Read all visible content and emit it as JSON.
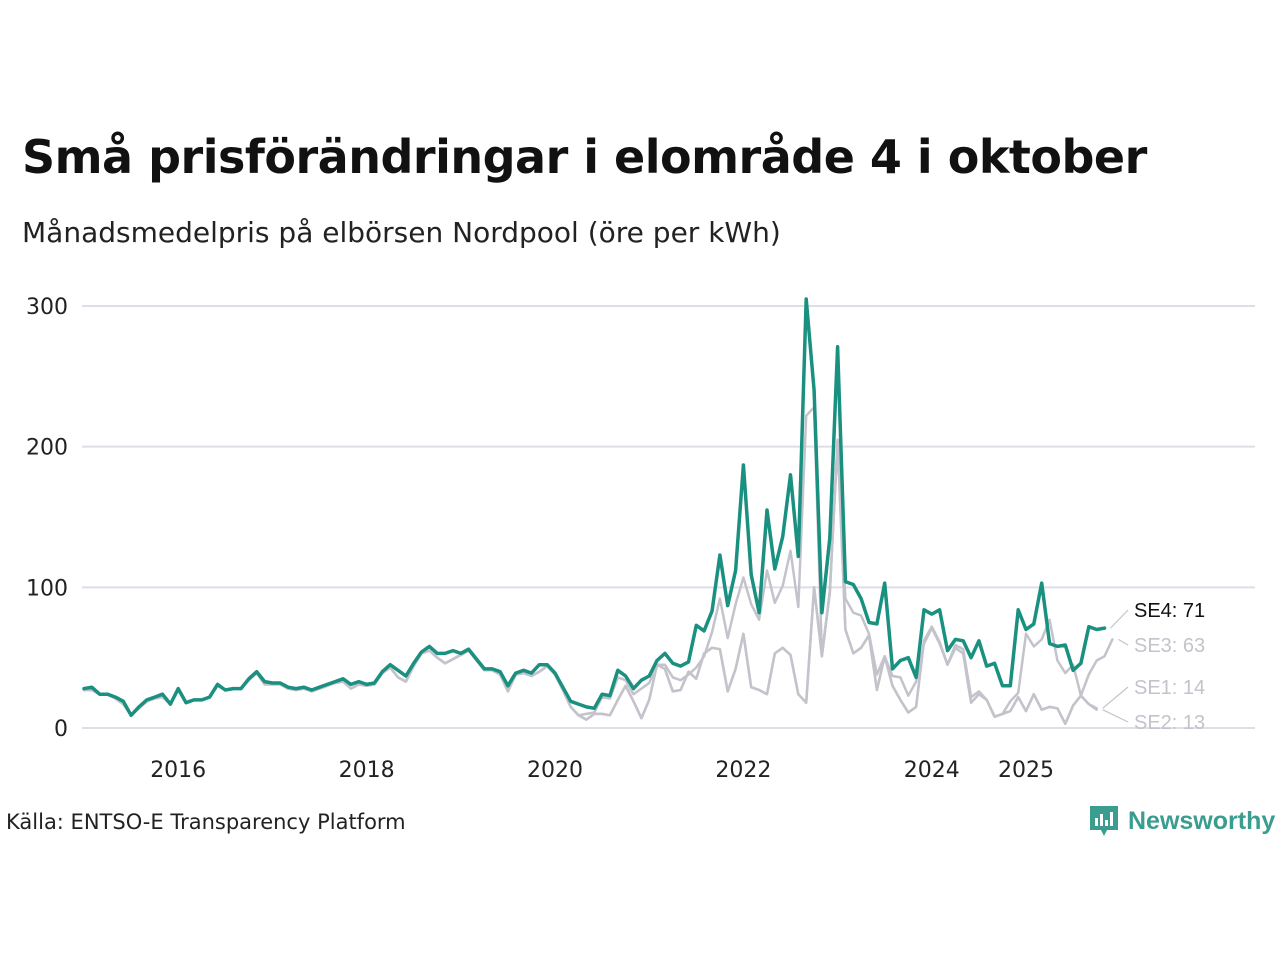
{
  "title": "Små prisförändringar i elområde 4 i oktober",
  "subtitle": "Månadsmedelpris på elbörsen Nordpool (öre per kWh)",
  "source": "Källa: ENTSO-E Transparency Platform",
  "brand": "Newsworthy",
  "colors": {
    "se4": "#1a9080",
    "others": "#c4c3cc",
    "grid": "#dedee6",
    "brand": "#3a9d8f",
    "label_se4": "#111111",
    "label_other": "#c4c3cc"
  },
  "icons": {
    "logo": "newsworthy-logo-icon"
  },
  "chart_data": {
    "type": "line",
    "title": "Små prisförändringar i elområde 4 i oktober",
    "ylabel": "öre per kWh",
    "xlabel": "",
    "ylim": [
      0,
      300
    ],
    "yticks": [
      "0",
      "100",
      "200",
      "300"
    ],
    "xticks": [
      {
        "label": "2016",
        "x": 2016
      },
      {
        "label": "2018",
        "x": 2018
      },
      {
        "label": "2020",
        "x": 2020
      },
      {
        "label": "2022",
        "x": 2022
      },
      {
        "label": "2024",
        "x": 2024
      },
      {
        "label": "2025",
        "x": 2025
      }
    ],
    "xstart": 2015.0,
    "step_months": 1,
    "series": [
      {
        "name": "SE4",
        "label": "SE4: 71",
        "last": 71,
        "values": [
          28,
          29,
          24,
          24,
          22,
          19,
          9,
          15,
          20,
          22,
          24,
          17,
          28,
          18,
          20,
          20,
          22,
          31,
          27,
          28,
          28,
          35,
          40,
          33,
          32,
          32,
          29,
          28,
          29,
          27,
          29,
          31,
          33,
          35,
          31,
          33,
          31,
          32,
          40,
          45,
          41,
          37,
          46,
          54,
          58,
          53,
          53,
          55,
          53,
          56,
          49,
          42,
          42,
          40,
          30,
          39,
          41,
          39,
          45,
          45,
          39,
          29,
          19,
          17,
          15,
          14,
          24,
          23,
          41,
          37,
          28,
          34,
          37,
          48,
          53,
          46,
          44,
          47,
          73,
          69,
          83,
          123,
          87,
          112,
          187,
          109,
          82,
          155,
          113,
          136,
          180,
          122,
          305,
          240,
          82,
          135,
          271,
          104,
          102,
          92,
          75,
          74,
          103,
          42,
          48,
          50,
          36,
          84,
          81,
          84,
          55,
          63,
          62,
          50,
          62,
          44,
          46,
          30,
          30,
          84,
          70,
          74,
          103,
          60,
          58,
          59,
          41,
          46,
          72,
          70,
          71
        ]
      },
      {
        "name": "SE3",
        "label": "SE3: 63",
        "values": [
          27,
          27,
          24,
          24,
          21,
          17,
          9,
          14,
          19,
          21,
          23,
          17,
          27,
          18,
          20,
          20,
          22,
          30,
          27,
          28,
          28,
          34,
          39,
          31,
          31,
          31,
          28,
          27,
          28,
          26,
          28,
          30,
          32,
          33,
          28,
          31,
          30,
          31,
          39,
          43,
          36,
          33,
          44,
          53,
          55,
          50,
          46,
          49,
          52,
          55,
          48,
          41,
          41,
          38,
          26,
          38,
          39,
          37,
          40,
          44,
          38,
          27,
          15,
          9,
          10,
          11,
          22,
          21,
          36,
          34,
          24,
          28,
          32,
          45,
          45,
          36,
          34,
          38,
          43,
          51,
          68,
          92,
          64,
          88,
          107,
          88,
          77,
          112,
          89,
          101,
          126,
          86,
          222,
          228,
          52,
          96,
          205,
          92,
          82,
          80,
          67,
          38,
          51,
          37,
          36,
          23,
          33,
          60,
          71,
          60,
          45,
          59,
          56,
          22,
          26,
          20,
          8,
          10,
          19,
          25,
          67,
          58,
          63,
          77,
          48,
          39,
          45,
          23,
          38,
          48,
          51,
          63
        ]
      },
      {
        "name": "SE1",
        "label": "SE1: 14",
        "values": [
          27,
          27,
          24,
          24,
          21,
          17,
          9,
          14,
          19,
          21,
          22,
          17,
          27,
          18,
          20,
          20,
          22,
          30,
          27,
          28,
          28,
          34,
          39,
          31,
          31,
          31,
          28,
          27,
          28,
          26,
          28,
          30,
          32,
          33,
          28,
          31,
          30,
          31,
          39,
          43,
          36,
          33,
          44,
          53,
          55,
          50,
          46,
          49,
          52,
          55,
          48,
          41,
          41,
          38,
          26,
          38,
          39,
          37,
          40,
          44,
          38,
          27,
          15,
          9,
          6,
          10,
          10,
          9,
          20,
          30,
          19,
          7,
          20,
          45,
          42,
          26,
          27,
          40,
          35,
          53,
          57,
          56,
          26,
          42,
          67,
          29,
          27,
          24,
          53,
          57,
          52,
          24,
          18,
          100,
          51,
          97,
          204,
          70,
          53,
          57,
          66,
          27,
          51,
          30,
          20,
          11,
          15,
          62,
          72,
          61,
          45,
          57,
          53,
          18,
          24,
          20,
          8,
          10,
          12,
          22,
          12,
          24,
          13,
          15,
          14,
          3,
          16,
          23,
          17,
          14
        ]
      },
      {
        "name": "SE2",
        "label": "SE2: 13",
        "values": [
          27,
          27,
          24,
          24,
          21,
          17,
          9,
          14,
          19,
          21,
          22,
          17,
          27,
          18,
          20,
          20,
          22,
          30,
          27,
          28,
          28,
          34,
          39,
          31,
          31,
          31,
          28,
          27,
          28,
          26,
          28,
          30,
          32,
          33,
          28,
          31,
          30,
          31,
          39,
          43,
          36,
          33,
          44,
          53,
          55,
          50,
          46,
          49,
          52,
          55,
          48,
          41,
          41,
          38,
          26,
          38,
          39,
          37,
          40,
          44,
          38,
          27,
          15,
          9,
          6,
          10,
          10,
          9,
          20,
          30,
          19,
          7,
          20,
          45,
          42,
          26,
          27,
          40,
          35,
          53,
          57,
          56,
          26,
          42,
          67,
          29,
          27,
          24,
          53,
          57,
          52,
          24,
          18,
          100,
          51,
          97,
          204,
          70,
          53,
          57,
          66,
          27,
          51,
          30,
          20,
          11,
          15,
          62,
          72,
          61,
          45,
          57,
          53,
          18,
          24,
          20,
          8,
          10,
          12,
          22,
          12,
          24,
          13,
          15,
          14,
          3,
          16,
          23,
          17,
          13
        ]
      }
    ]
  }
}
